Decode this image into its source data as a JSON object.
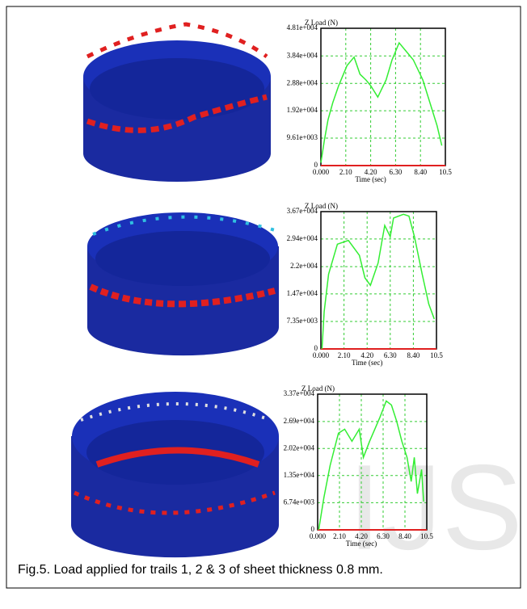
{
  "caption": "Fig.5. Load applied for trails 1, 2 & 3 of sheet thickness 0.8 mm.",
  "watermark": "IJS",
  "chart_data": [
    {
      "type": "line",
      "ylabel": "Z Load (N)",
      "xlabel": "Time (sec)",
      "color": "#33ee33",
      "grid": true,
      "grid_color": "#33cc33",
      "x": [
        0,
        0.3,
        0.6,
        1.0,
        1.5,
        2.2,
        2.8,
        3.3,
        3.8,
        4.2,
        4.8,
        5.5,
        6.0,
        6.3,
        6.6,
        7.2,
        7.8,
        8.6,
        9.2,
        9.8,
        10.2
      ],
      "values": [
        1000,
        9000,
        16000,
        22000,
        28000,
        35000,
        38000,
        32000,
        30000,
        28000,
        24000,
        30000,
        37000,
        40000,
        43000,
        40000,
        37000,
        30000,
        22000,
        14000,
        7000
      ],
      "xlim": [
        0,
        10.5
      ],
      "ylim": [
        0,
        48100
      ],
      "xticks": [
        {
          "value": 0,
          "label": "0.000"
        },
        {
          "value": 2.1,
          "label": "2.10"
        },
        {
          "value": 4.2,
          "label": "4.20"
        },
        {
          "value": 6.3,
          "label": "6.30"
        },
        {
          "value": 8.4,
          "label": "8.40"
        },
        10.5
      ],
      "yticks": [
        0,
        {
          "value": 9610,
          "label": "9.61e+003"
        },
        {
          "value": 19200,
          "label": "1.92e+004"
        },
        {
          "value": 28800,
          "label": "2.88e+004"
        },
        {
          "value": 38400,
          "label": "3.84e+004"
        },
        {
          "value": 48100,
          "label": "4.81e+004"
        }
      ]
    },
    {
      "type": "line",
      "ylabel": "Z Load (N)",
      "xlabel": "Time (sec)",
      "color": "#33ee33",
      "grid": true,
      "grid_color": "#33cc33",
      "x": [
        0.1,
        0.3,
        0.7,
        1.5,
        2.5,
        3.5,
        4.0,
        4.5,
        5.2,
        5.8,
        6.3,
        6.6,
        7.5,
        8.0,
        8.5,
        9.2,
        9.8,
        10.3
      ],
      "values": [
        0,
        10000,
        20000,
        28000,
        29000,
        25000,
        19000,
        17000,
        23000,
        33000,
        30000,
        35000,
        36000,
        35500,
        30000,
        20000,
        12000,
        8000
      ],
      "xlim": [
        0,
        10.5
      ],
      "ylim": [
        0,
        36700
      ],
      "xticks": [
        {
          "value": 0,
          "label": "0.000"
        },
        {
          "value": 2.1,
          "label": "2.10"
        },
        {
          "value": 4.2,
          "label": "4.20"
        },
        {
          "value": 6.3,
          "label": "6.30"
        },
        {
          "value": 8.4,
          "label": "8.40"
        },
        10.5
      ],
      "yticks": [
        0,
        {
          "value": 7350,
          "label": "7.35e+003"
        },
        {
          "value": 14700,
          "label": "1.47e+004"
        },
        {
          "value": 22000,
          "label": "2.2e+004"
        },
        {
          "value": 29400,
          "label": "2.94e+004"
        },
        {
          "value": 36700,
          "label": "3.67e+004"
        }
      ]
    },
    {
      "type": "line",
      "ylabel": "Z Load (N)",
      "xlabel": "Time (sec)",
      "color": "#33ee33",
      "grid": true,
      "grid_color": "#33cc33",
      "x": [
        0.1,
        0.6,
        1.2,
        2.0,
        2.6,
        3.3,
        4.0,
        4.4,
        5.0,
        6.0,
        6.6,
        7.1,
        7.6,
        8.1,
        8.6,
        9.0,
        9.3,
        9.6,
        10.0,
        10.2
      ],
      "values": [
        0,
        8000,
        16000,
        24000,
        25000,
        22000,
        25000,
        18000,
        22000,
        28000,
        32000,
        31000,
        27000,
        22000,
        18000,
        12000,
        18000,
        9000,
        15000,
        7000
      ],
      "xlim": [
        0,
        10.5
      ],
      "ylim": [
        0,
        33700
      ],
      "xticks": [
        {
          "value": 0,
          "label": "0.000"
        },
        {
          "value": 2.1,
          "label": "2.10"
        },
        {
          "value": 4.2,
          "label": "4.20"
        },
        {
          "value": 6.3,
          "label": "6.30"
        },
        {
          "value": 8.4,
          "label": "8.40"
        },
        10.5
      ],
      "yticks": [
        0,
        {
          "value": 6740,
          "label": "6.74e+003"
        },
        {
          "value": 13500,
          "label": "1.35e+004"
        },
        {
          "value": 20200,
          "label": "2.02e+004"
        },
        {
          "value": 26900,
          "label": "2.69e+004"
        },
        {
          "value": 33700,
          "label": "3.37e+004"
        }
      ]
    }
  ]
}
